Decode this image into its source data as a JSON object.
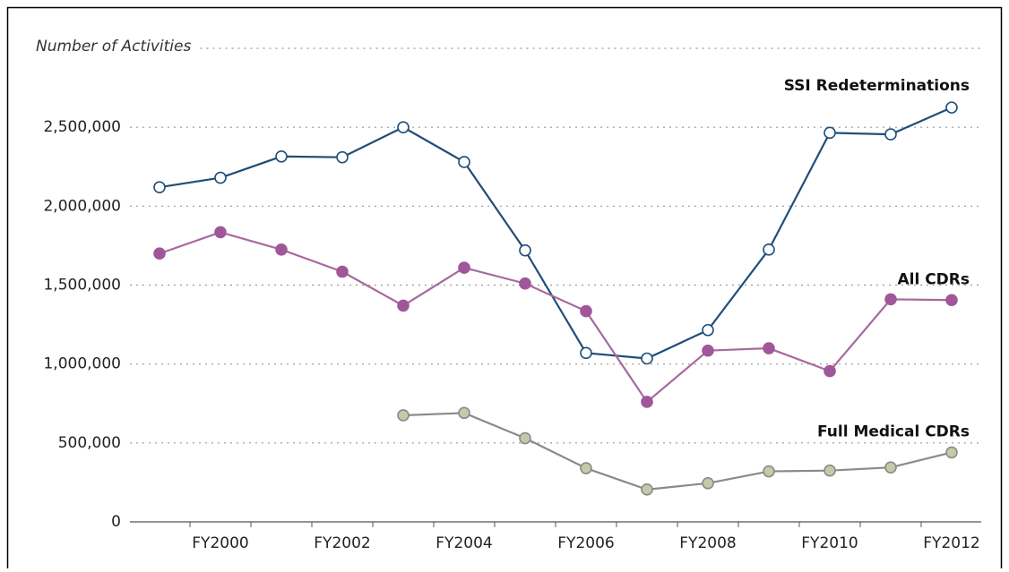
{
  "chart_data": {
    "type": "line",
    "y_label": "Number of Activities",
    "categories": [
      null,
      "FY2000",
      null,
      "FY2002",
      null,
      "FY2004",
      null,
      "FY2006",
      null,
      "FY2008",
      null,
      "FY2010",
      null,
      "FY2012"
    ],
    "ylim": [
      0,
      3000000
    ],
    "yticks": [
      0,
      {
        "value": 500000,
        "label": "500,000"
      },
      {
        "value": 1000000,
        "label": "1,000,000"
      },
      {
        "value": 1500000,
        "label": "1,500,000"
      },
      {
        "value": 2000000,
        "label": "2,000,000"
      },
      {
        "value": 2500000,
        "label": "2,500,000"
      }
    ],
    "grid": true,
    "series": [
      {
        "name": "SSI Redeterminations",
        "color": "#1f4e79",
        "marker_fill": "#ffffff",
        "values": [
          2120000,
          2180000,
          2315000,
          2310000,
          2500000,
          2280000,
          1720000,
          1070000,
          1035000,
          1215000,
          1725000,
          2465000,
          2455000,
          2625000
        ]
      },
      {
        "name": "All CDRs",
        "color": "#a8699e",
        "marker_fill": "#a0579a",
        "values": [
          1700000,
          1835000,
          1725000,
          1585000,
          1370000,
          1610000,
          1510000,
          1335000,
          760000,
          1085000,
          1100000,
          955000,
          1410000,
          1405000
        ]
      },
      {
        "name": "Full Medical CDRs",
        "color": "#8a8a8a",
        "marker_fill": "#c6c9a6",
        "values": [
          null,
          null,
          null,
          null,
          675000,
          690000,
          530000,
          340000,
          205000,
          245000,
          320000,
          325000,
          345000,
          440000
        ]
      }
    ]
  }
}
